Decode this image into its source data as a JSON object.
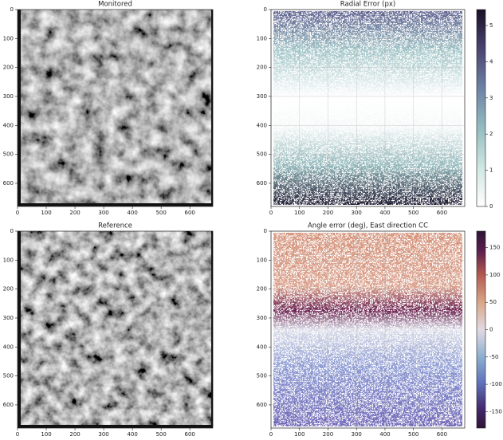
{
  "chart_data": [
    {
      "type": "image",
      "title": "Monitored",
      "xlim": [
        0,
        680
      ],
      "ylim": [
        680,
        0
      ],
      "xticks": [
        0,
        100,
        200,
        300,
        400,
        500,
        600
      ],
      "yticks": [
        0,
        100,
        200,
        300,
        400,
        500,
        600
      ],
      "grid": false
    },
    {
      "type": "image",
      "title": "Radial Error (px)",
      "xlim": [
        0,
        680
      ],
      "ylim": [
        680,
        0
      ],
      "xticks": [
        0,
        100,
        200,
        300,
        400,
        500,
        600
      ],
      "yticks": [
        0,
        100,
        200,
        300,
        400,
        500,
        600
      ],
      "grid": true,
      "colorbar": {
        "lim": [
          0,
          5.44
        ],
        "ticks": [
          0,
          1,
          2,
          3,
          4,
          5
        ]
      }
    },
    {
      "type": "image",
      "title": "Reference",
      "xlim": [
        0,
        680
      ],
      "ylim": [
        680,
        0
      ],
      "xticks": [
        0,
        100,
        200,
        300,
        400,
        500,
        600
      ],
      "yticks": [
        0,
        100,
        200,
        300,
        400,
        500,
        600
      ],
      "grid": false
    },
    {
      "type": "image",
      "title": "Angle error (deg), East direction CC",
      "xlim": [
        0,
        680
      ],
      "ylim": [
        680,
        0
      ],
      "xticks": [
        0,
        100,
        200,
        300,
        400,
        500,
        600
      ],
      "yticks": [
        0,
        100,
        200,
        300,
        400,
        500,
        600
      ],
      "grid": true,
      "colorbar": {
        "lim": [
          -180,
          180
        ],
        "ticks": [
          150,
          100,
          50,
          0,
          -50,
          -100,
          -150
        ]
      }
    }
  ]
}
